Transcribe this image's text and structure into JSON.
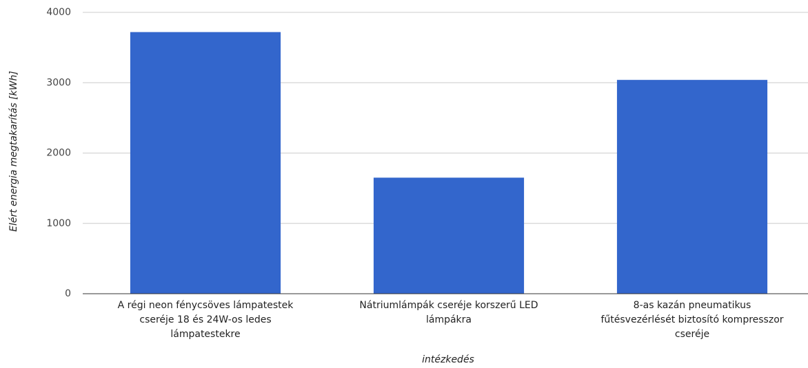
{
  "chart_data": {
    "type": "bar",
    "y_label": "Elért energia megtakarítás [kWh]",
    "x_label": "intézkedés",
    "categories": [
      "A régi neon fénycsöves lámpatestek cseréje 18 és 24W-os ledes lámpatestekre",
      "Nátriumlámpák cseréje korszerű LED lámpákra",
      "8-as kazán pneumatikus fűtésvezérlését biztosító kompresszor cseréje"
    ],
    "values": [
      3720,
      1650,
      3040
    ],
    "color": "#3366cc",
    "ylim": [
      0,
      4000
    ],
    "yticks": [
      0,
      1000,
      2000,
      3000,
      4000
    ],
    "grid": true
  }
}
